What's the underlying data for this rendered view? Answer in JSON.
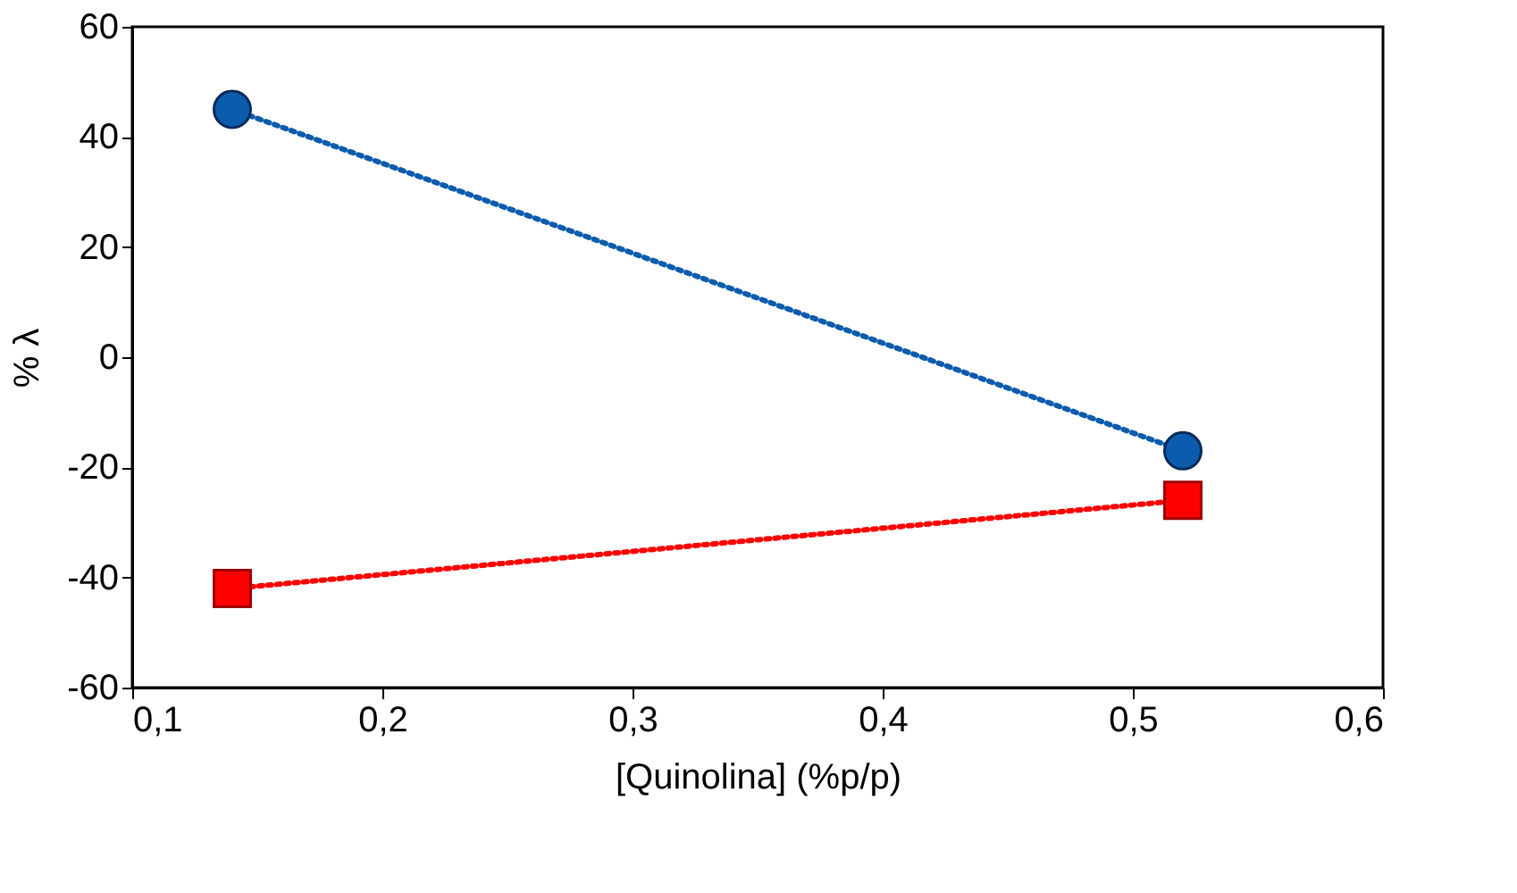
{
  "chart_data": {
    "type": "line",
    "xlabel": "[Quinolina] (%p/p)",
    "ylabel": "% λ",
    "xlim": [
      0.1,
      0.6
    ],
    "xticks": [
      {
        "value": 0.1,
        "label": "0,1"
      },
      {
        "value": 0.2,
        "label": "0,2"
      },
      {
        "value": 0.3,
        "label": "0,3"
      },
      {
        "value": 0.4,
        "label": "0,4"
      },
      {
        "value": 0.5,
        "label": "0,5"
      },
      {
        "value": 0.6,
        "label": "0,6"
      }
    ],
    "ylim": [
      -60,
      60
    ],
    "yticks": [
      -60,
      -40,
      -20,
      0,
      20,
      40,
      60
    ],
    "grid": false,
    "line_style": "dotted",
    "x": [
      0.14,
      0.52
    ],
    "series": [
      {
        "color": "#0b5cad",
        "marker": "circle",
        "values": [
          45,
          -17
        ]
      },
      {
        "color": "#ff0000",
        "marker": "square",
        "values": [
          -42,
          -26
        ]
      }
    ]
  }
}
